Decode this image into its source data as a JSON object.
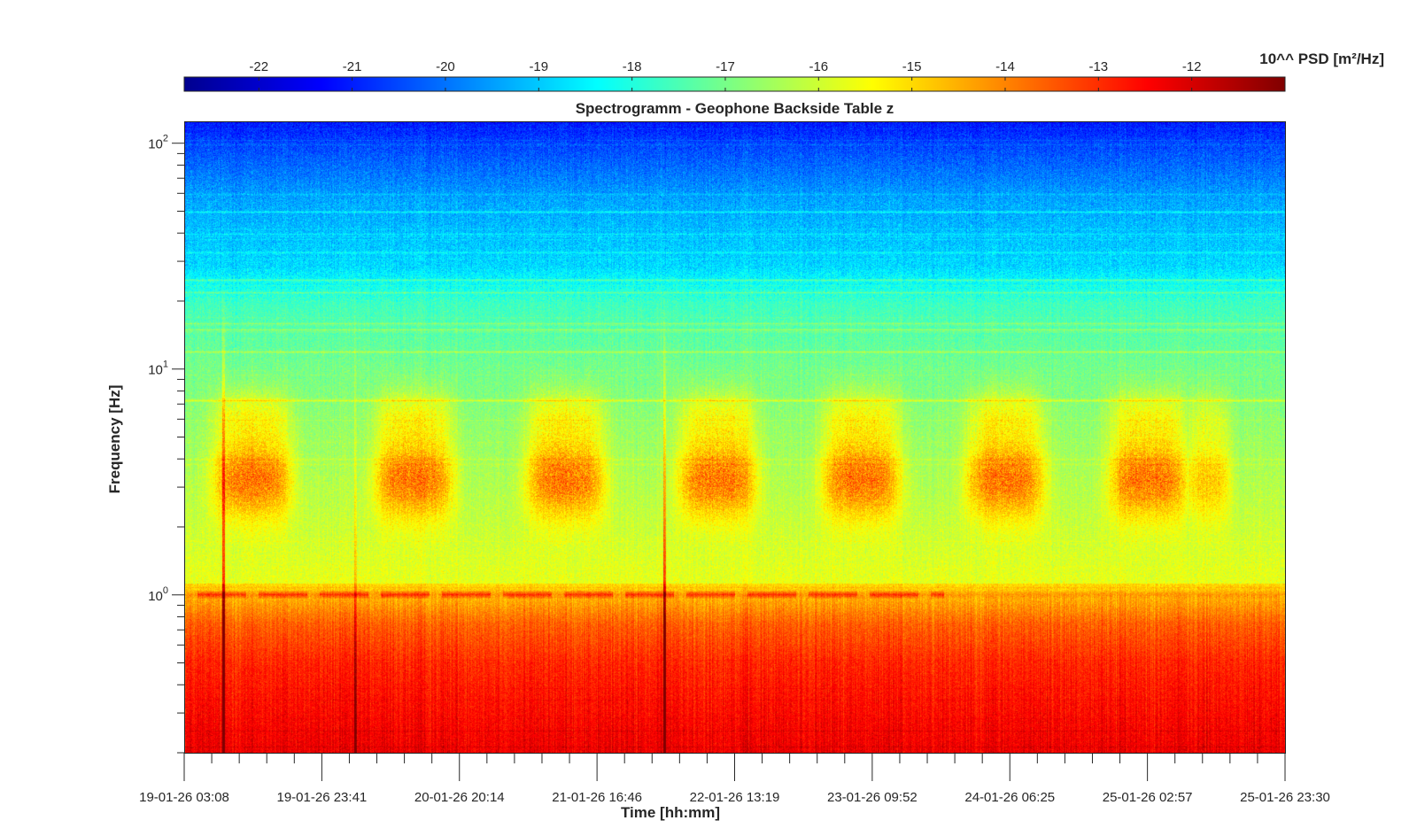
{
  "chart_data": {
    "type": "heatmap",
    "title": "Spectrogramm - Geophone Backside Table z",
    "xlabel": "Time [hh:mm]",
    "ylabel": "Frequency [Hz]",
    "colorbar_label": "10^^ PSD [m²/Hz]",
    "colormap": "jet",
    "color_range": [
      -22.8,
      -11.0
    ],
    "colorbar_ticks": [
      -22,
      -21,
      -20,
      -19,
      -18,
      -17,
      -16,
      -15,
      -14,
      -13,
      -12
    ],
    "y_scale": "log",
    "ylim": [
      0.2,
      125
    ],
    "y_ticks": [
      {
        "value": 1,
        "label_base": "10",
        "label_exp": "0"
      },
      {
        "value": 10,
        "label_base": "10",
        "label_exp": "1"
      },
      {
        "value": 100,
        "label_base": "10",
        "label_exp": "2"
      }
    ],
    "x_range": [
      "19-01-26 03:08",
      "25-01-26 23:30"
    ],
    "x_tick_labels": [
      "19-01-26 03:08",
      "19-01-26 23:41",
      "20-01-26 20:14",
      "21-01-26 16:46",
      "22-01-26 13:19",
      "23-01-26 09:52",
      "24-01-26 06:25",
      "25-01-26 02:57",
      "25-01-26 23:30"
    ],
    "x_minor_ticks_per_interval": 5,
    "grid": false,
    "features": {
      "day_activity_centers": [
        0.061,
        0.208,
        0.346,
        0.484,
        0.615,
        0.746,
        0.876,
        0.93
      ],
      "activity_band_hz": [
        1.5,
        6
      ],
      "activity_peak_log10_psd": -13.7,
      "tone_1hz_log10_psd": -13.6,
      "transient_lines": [
        0.035,
        0.436,
        0.155
      ]
    }
  }
}
